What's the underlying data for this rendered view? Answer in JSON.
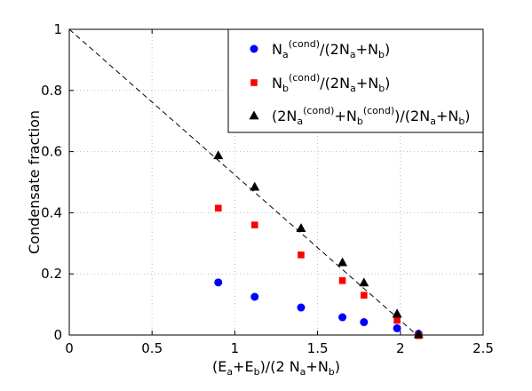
{
  "chart_data": {
    "type": "scatter",
    "title": "",
    "xlabel": {
      "t1": "(E",
      "s1": "a",
      "t2": "+E",
      "s2": "b",
      "t3": ")/(2 N",
      "s3": "a",
      "t4": "+N",
      "s4": "b",
      "t5": ")"
    },
    "ylabel": "Condensate fraction",
    "xlim": [
      0,
      2.5
    ],
    "ylim": [
      0,
      1
    ],
    "xticks": [
      0,
      0.5,
      1,
      1.5,
      2,
      2.5
    ],
    "xtick_labels": [
      "0",
      "0.5",
      "1",
      "1.5",
      "2",
      "2.5"
    ],
    "yticks": [
      0,
      0.2,
      0.4,
      0.6,
      0.8,
      1
    ],
    "ytick_labels": [
      "0",
      "0.2",
      "0.4",
      "0.6",
      "0.8",
      "1"
    ],
    "grid": true,
    "legend_position": "top-right",
    "reference_line": {
      "style": "dashed",
      "x": [
        0,
        2.1
      ],
      "y": [
        1,
        0
      ]
    },
    "series": [
      {
        "name": "N_a^(cond)/(2N_a+N_b)",
        "marker": "circle",
        "color": "#0000ff",
        "x": [
          0.9,
          1.12,
          1.4,
          1.65,
          1.78,
          1.98,
          2.11
        ],
        "y": [
          0.172,
          0.125,
          0.09,
          0.058,
          0.042,
          0.022,
          0.004
        ]
      },
      {
        "name": "N_b^(cond)/(2N_a+N_b)",
        "marker": "square",
        "color": "#ff0000",
        "x": [
          0.9,
          1.12,
          1.4,
          1.65,
          1.78,
          1.98,
          2.11
        ],
        "y": [
          0.415,
          0.36,
          0.262,
          0.178,
          0.13,
          0.048,
          -0.002
        ]
      },
      {
        "name": "(2N_a^(cond)+N_b^(cond))/(2N_a+N_b)",
        "marker": "triangle",
        "color": "#000000",
        "x": [
          0.9,
          1.12,
          1.4,
          1.65,
          1.78,
          1.98,
          2.11
        ],
        "y": [
          0.588,
          0.485,
          0.35,
          0.238,
          0.172,
          0.07,
          0.003
        ]
      }
    ],
    "legend": [
      {
        "parts": [
          {
            "t": "N"
          },
          {
            "s": "a"
          },
          {
            "p": "(cond)"
          },
          {
            "t": "/(2N"
          },
          {
            "s": "a"
          },
          {
            "t": "+N"
          },
          {
            "s": "b"
          },
          {
            "t": ")"
          }
        ]
      },
      {
        "parts": [
          {
            "t": "N"
          },
          {
            "s": "b"
          },
          {
            "p": "(cond)"
          },
          {
            "t": "/(2N"
          },
          {
            "s": "a"
          },
          {
            "t": "+N"
          },
          {
            "s": "b"
          },
          {
            "t": ")"
          }
        ]
      },
      {
        "parts": [
          {
            "t": "(2N"
          },
          {
            "s": "a"
          },
          {
            "p": "(cond)"
          },
          {
            "t": "+N"
          },
          {
            "s": "b"
          },
          {
            "p": "(cond)"
          },
          {
            "t": ")/(2N"
          },
          {
            "s": "a"
          },
          {
            "t": "+N"
          },
          {
            "s": "b"
          },
          {
            "t": ")"
          }
        ]
      }
    ]
  }
}
